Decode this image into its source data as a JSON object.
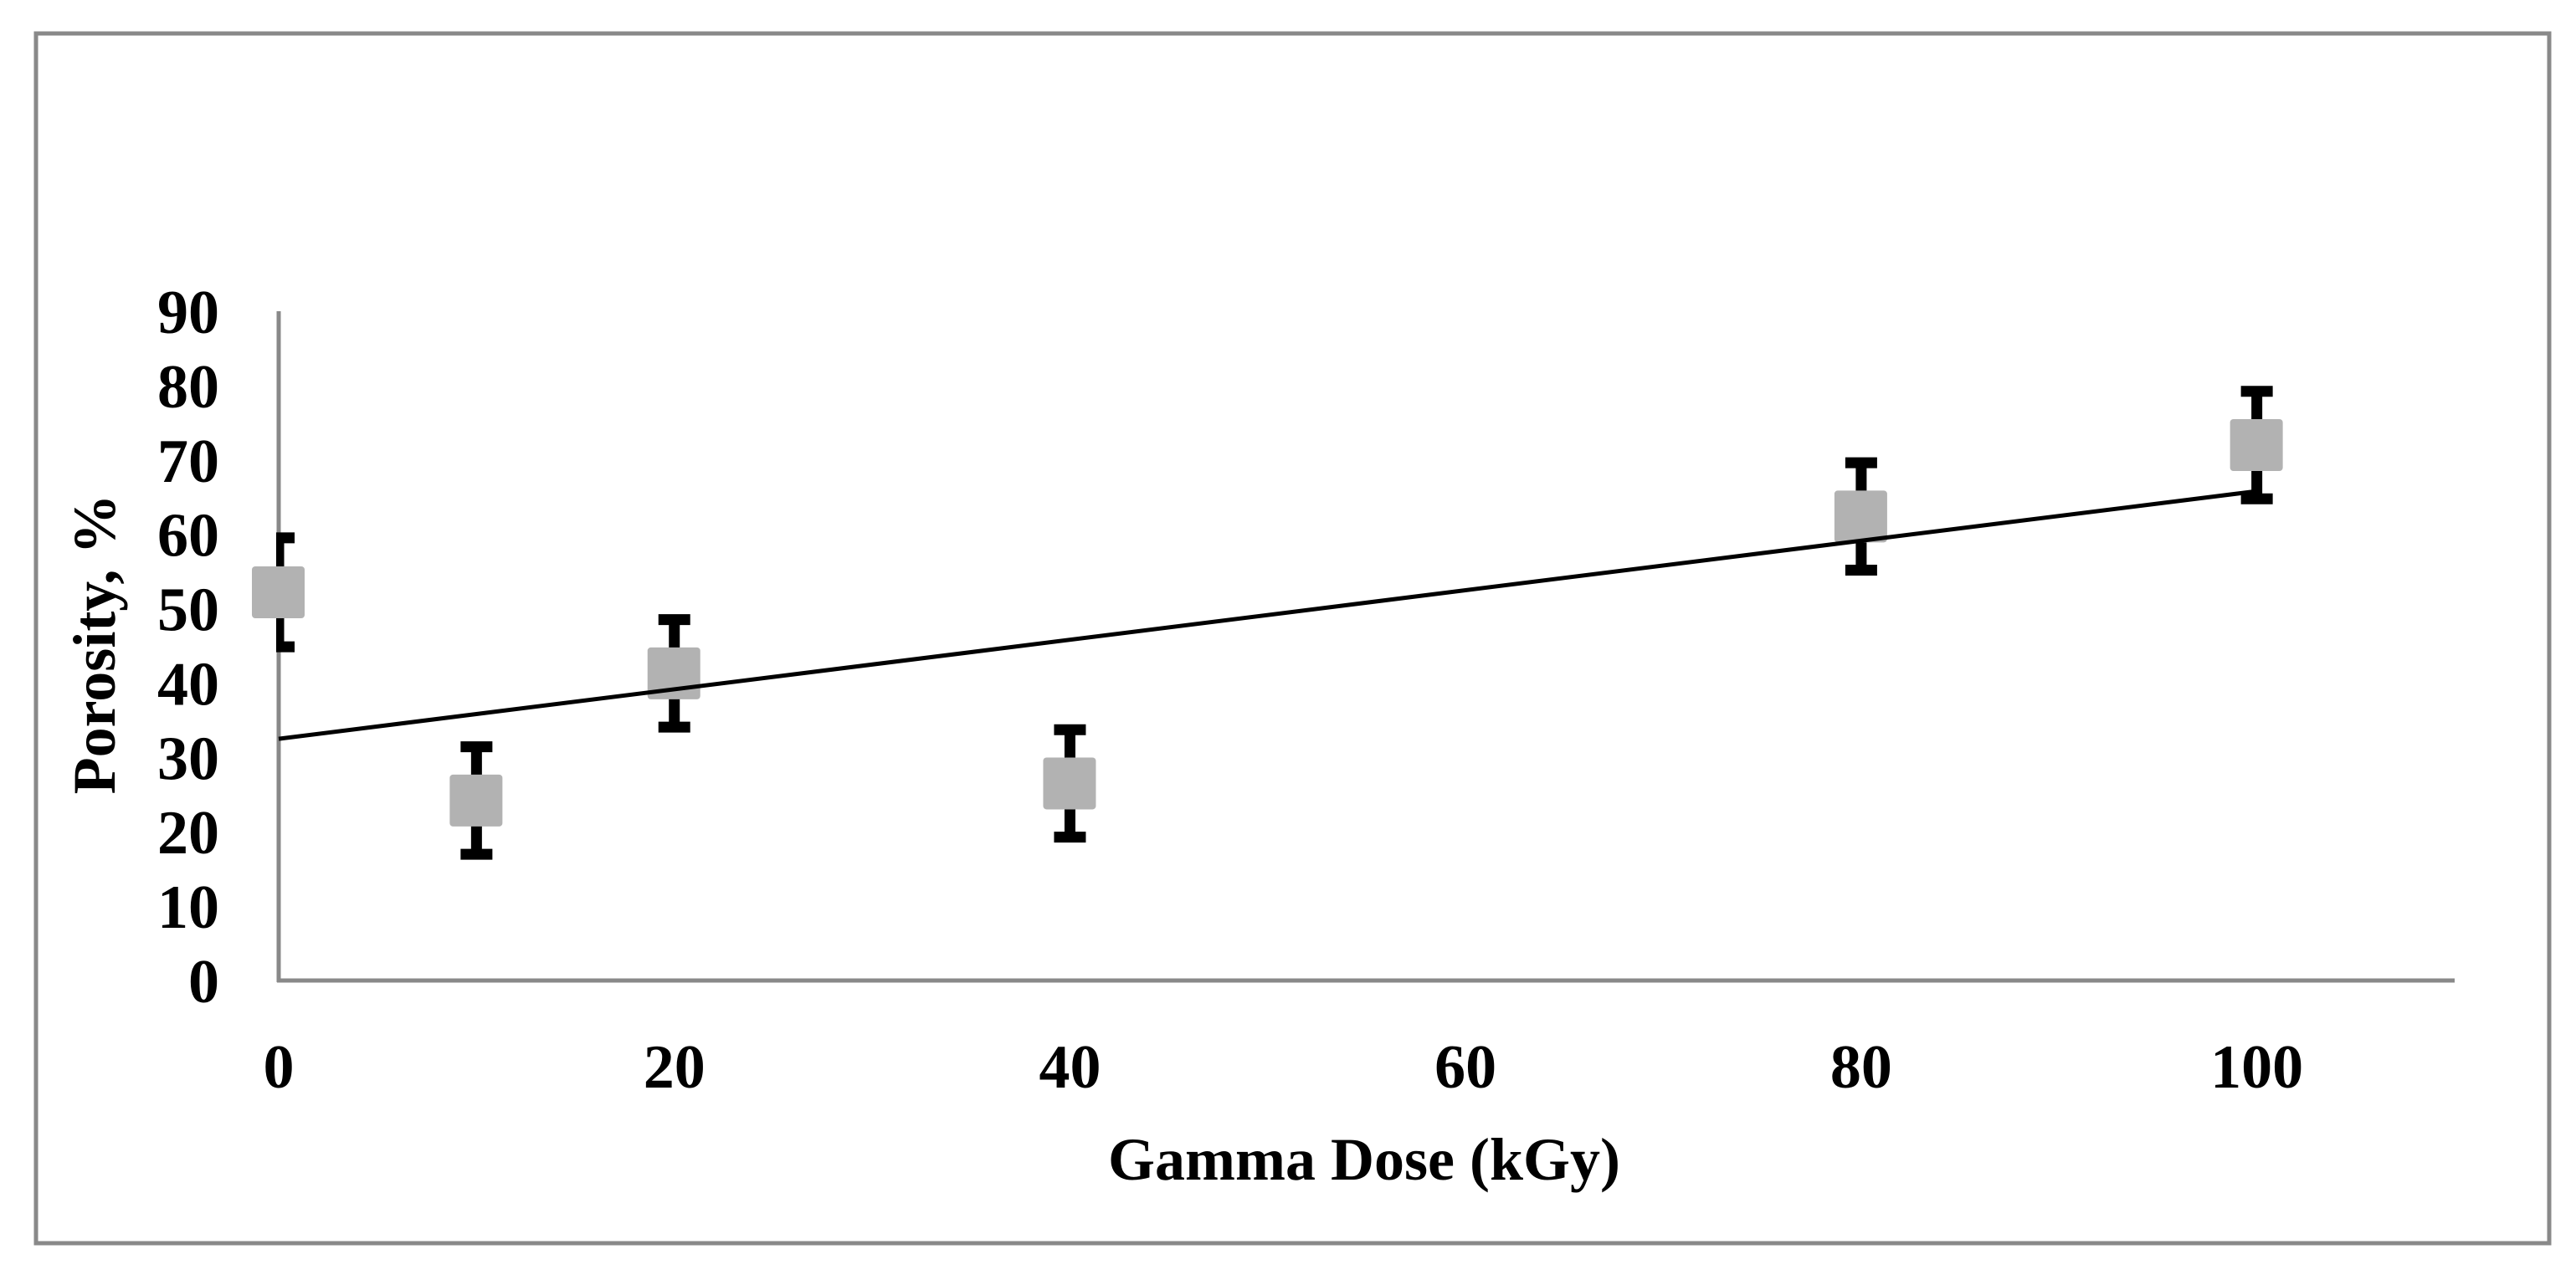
{
  "chart_data": {
    "type": "scatter",
    "title": "",
    "xlabel": "Gamma Dose (kGy)",
    "ylabel": "Porosity, %",
    "xlim": [
      0,
      110
    ],
    "ylim": [
      0,
      90
    ],
    "x_ticks": [
      0,
      20,
      40,
      60,
      80,
      100
    ],
    "y_ticks": [
      0,
      10,
      20,
      30,
      40,
      50,
      60,
      70,
      80,
      90
    ],
    "grid": false,
    "legend": null,
    "series": [
      {
        "name": "Porosity",
        "marker": "square",
        "marker_color": "#b2b2b2",
        "error_bar_color": "#000000",
        "points": [
          {
            "x": 0,
            "y": 52.2,
            "err": 8.0
          },
          {
            "x": 10,
            "y": 24.2,
            "err": 7.9
          },
          {
            "x": 20,
            "y": 41.3,
            "err": 7.9
          },
          {
            "x": 40,
            "y": 26.5,
            "err": 7.9
          },
          {
            "x": 80,
            "y": 62.4,
            "err": 7.9
          },
          {
            "x": 100,
            "y": 72.0,
            "err": 7.9
          }
        ]
      }
    ],
    "trendline": {
      "type": "linear",
      "color": "#000000",
      "x_start": 0,
      "x_end": 100,
      "y_start": 32.5,
      "y_end": 65.8
    }
  },
  "style": {
    "frame_color": "#898989",
    "axis_color": "#898989"
  }
}
